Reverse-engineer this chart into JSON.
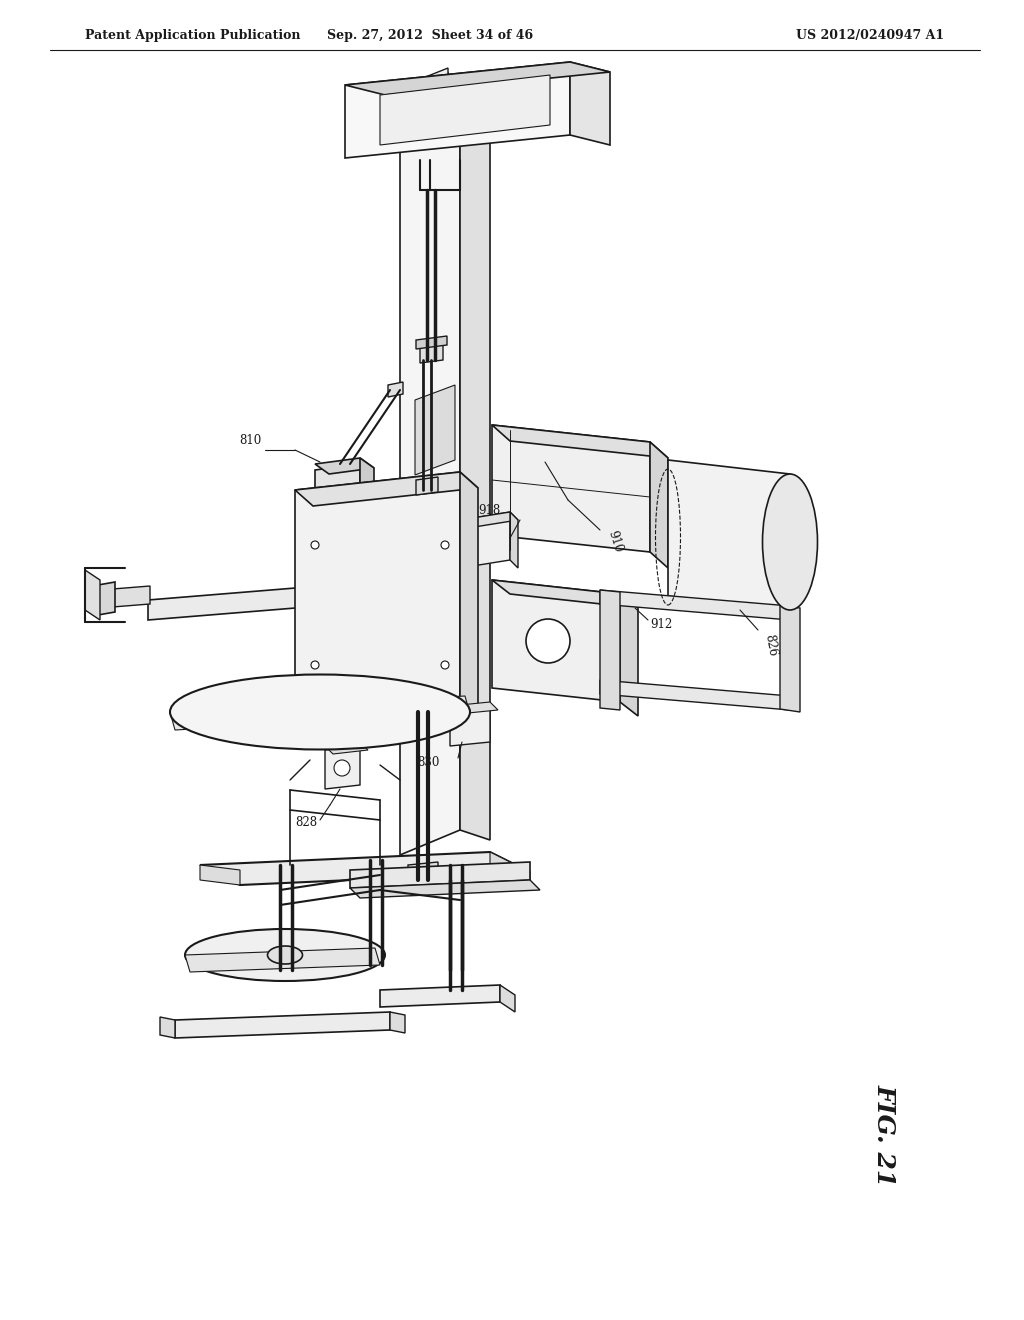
{
  "title_left": "Patent Application Publication",
  "title_mid": "Sep. 27, 2012  Sheet 34 of 46",
  "title_right": "US 2012/0240947 A1",
  "fig_label": "FIG. 21",
  "background_color": "#ffffff",
  "line_color": "#1a1a1a",
  "header_font_size": 9,
  "fig_label_font_size": 18,
  "ref_810": "810",
  "ref_910": "910",
  "ref_918": "918",
  "ref_912": "912",
  "ref_826": "826",
  "ref_828": "828",
  "ref_830": "830"
}
